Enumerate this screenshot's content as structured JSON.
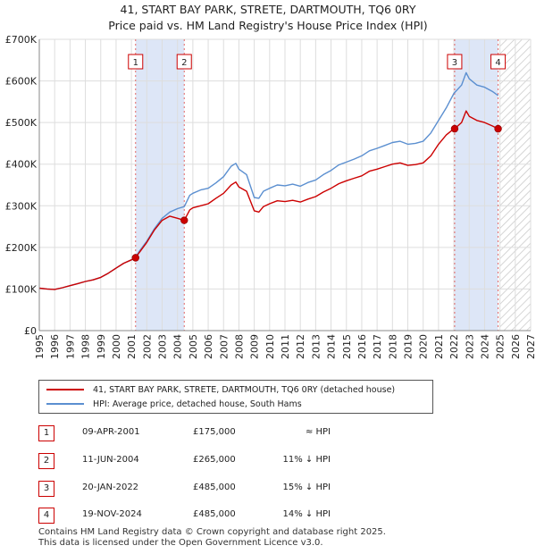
{
  "title": "41, START BAY PARK, STRETE, DARTMOUTH, TQ6 0RY",
  "subtitle": "Price paid vs. HM Land Registry's House Price Index (HPI)",
  "legend": {
    "property": "41, START BAY PARK, STRETE, DARTMOUTH, TQ6 0RY (detached house)",
    "hpi": "HPI: Average price, detached house, South Hams"
  },
  "colors": {
    "property": "#cc0000",
    "hpi": "#5b8fd0",
    "shade": "#dde6f7",
    "grid": "#dddddd"
  },
  "transactions": [
    {
      "num": "1",
      "date": "09-APR-2001",
      "price": "£175,000",
      "hpi": "≈ HPI"
    },
    {
      "num": "2",
      "date": "11-JUN-2004",
      "price": "£265,000",
      "hpi": "11% ↓ HPI"
    },
    {
      "num": "3",
      "date": "20-JAN-2022",
      "price": "£485,000",
      "hpi": "15% ↓ HPI"
    },
    {
      "num": "4",
      "date": "19-NOV-2024",
      "price": "£485,000",
      "hpi": "14% ↓ HPI"
    }
  ],
  "footer": {
    "line1": "Contains HM Land Registry data © Crown copyright and database right 2025.",
    "line2": "This data is licensed under the Open Government Licence v3.0."
  },
  "chart_data": {
    "type": "line",
    "xlim": [
      1995,
      2027
    ],
    "ylim": [
      0,
      700000
    ],
    "xticks": [
      "1995",
      "1996",
      "1997",
      "1998",
      "1999",
      "2000",
      "2001",
      "2002",
      "2003",
      "2004",
      "2005",
      "2006",
      "2007",
      "2008",
      "2009",
      "2010",
      "2011",
      "2012",
      "2013",
      "2014",
      "2015",
      "2016",
      "2017",
      "2018",
      "2019",
      "2020",
      "2021",
      "2022",
      "2023",
      "2024",
      "2025",
      "2026",
      "2027"
    ],
    "yticks": [
      {
        "value": 0,
        "label": "£0"
      },
      {
        "value": 100000,
        "label": "£100K"
      },
      {
        "value": 200000,
        "label": "£200K"
      },
      {
        "value": 300000,
        "label": "£300K"
      },
      {
        "value": 400000,
        "label": "£400K"
      },
      {
        "value": 500000,
        "label": "£500K"
      },
      {
        "value": 600000,
        "label": "£600K"
      },
      {
        "value": 700000,
        "label": "£700K"
      }
    ],
    "sales": [
      {
        "label": "1",
        "x": 2001.27,
        "y": 175000
      },
      {
        "label": "2",
        "x": 2004.44,
        "y": 265000
      },
      {
        "label": "3",
        "x": 2022.05,
        "y": 485000
      },
      {
        "label": "4",
        "x": 2024.88,
        "y": 485000
      }
    ],
    "shaded_ranges": [
      [
        2001.27,
        2004.44
      ],
      [
        2022.05,
        2024.88
      ]
    ],
    "hatch_from": 2025.0,
    "series": [
      {
        "name": "HPI: Average price, detached house, South Hams",
        "x": [
          1995.0,
          1995.5,
          1996.0,
          1996.5,
          1997.0,
          1997.5,
          1998.0,
          1998.5,
          1999.0,
          1999.5,
          2000.0,
          2000.5,
          2001.0,
          2001.27,
          2001.5,
          2002.0,
          2002.5,
          2003.0,
          2003.5,
          2004.0,
          2004.44,
          2004.8,
          2005.0,
          2005.5,
          2006.0,
          2006.5,
          2007.0,
          2007.5,
          2007.8,
          2008.0,
          2008.5,
          2009.0,
          2009.3,
          2009.6,
          2010.0,
          2010.5,
          2011.0,
          2011.5,
          2012.0,
          2012.5,
          2013.0,
          2013.5,
          2014.0,
          2014.5,
          2015.0,
          2015.5,
          2016.0,
          2016.5,
          2017.0,
          2017.5,
          2018.0,
          2018.5,
          2019.0,
          2019.5,
          2020.0,
          2020.5,
          2021.0,
          2021.5,
          2022.0,
          2022.05,
          2022.5,
          2022.8,
          2023.0,
          2023.5,
          2024.0,
          2024.5,
          2024.88
        ],
        "values": [
          102000,
          100000,
          99000,
          103000,
          108000,
          113000,
          118000,
          122000,
          128000,
          138000,
          150000,
          162000,
          170000,
          176000,
          190000,
          215000,
          245000,
          270000,
          285000,
          293000,
          298000,
          325000,
          330000,
          338000,
          342000,
          355000,
          370000,
          395000,
          402000,
          388000,
          375000,
          320000,
          318000,
          335000,
          342000,
          350000,
          348000,
          352000,
          347000,
          356000,
          362000,
          375000,
          385000,
          398000,
          405000,
          412000,
          420000,
          432000,
          438000,
          445000,
          452000,
          455000,
          448000,
          450000,
          455000,
          475000,
          505000,
          535000,
          570000,
          572000,
          590000,
          620000,
          605000,
          590000,
          585000,
          575000,
          565000
        ]
      },
      {
        "name": "41, START BAY PARK, STRETE, DARTMOUTH, TQ6 0RY (detached house)",
        "x": [
          1995.0,
          1995.5,
          1996.0,
          1996.5,
          1997.0,
          1997.5,
          1998.0,
          1998.5,
          1999.0,
          1999.5,
          2000.0,
          2000.5,
          2001.0,
          2001.27,
          2001.5,
          2002.0,
          2002.5,
          2003.0,
          2003.5,
          2004.0,
          2004.44,
          2004.8,
          2005.0,
          2005.5,
          2006.0,
          2006.5,
          2007.0,
          2007.5,
          2007.8,
          2008.0,
          2008.5,
          2009.0,
          2009.3,
          2009.6,
          2010.0,
          2010.5,
          2011.0,
          2011.5,
          2012.0,
          2012.5,
          2013.0,
          2013.5,
          2014.0,
          2014.5,
          2015.0,
          2015.5,
          2016.0,
          2016.5,
          2017.0,
          2017.5,
          2018.0,
          2018.5,
          2019.0,
          2019.5,
          2020.0,
          2020.5,
          2021.0,
          2021.5,
          2022.0,
          2022.05,
          2022.5,
          2022.8,
          2023.0,
          2023.5,
          2024.0,
          2024.5,
          2024.88
        ],
        "values": [
          102000,
          100000,
          99000,
          103000,
          108000,
          113000,
          118000,
          122000,
          128000,
          138000,
          150000,
          162000,
          170000,
          175000,
          187000,
          212000,
          242000,
          265000,
          275000,
          270000,
          265000,
          290000,
          295000,
          300000,
          305000,
          318000,
          330000,
          350000,
          357000,
          345000,
          335000,
          288000,
          285000,
          298000,
          305000,
          312000,
          310000,
          313000,
          309000,
          316000,
          322000,
          333000,
          342000,
          353000,
          360000,
          366000,
          372000,
          383000,
          388000,
          394000,
          400000,
          403000,
          397000,
          399000,
          403000,
          420000,
          448000,
          470000,
          485000,
          485000,
          500000,
          528000,
          515000,
          505000,
          500000,
          492000,
          485000
        ]
      }
    ]
  }
}
